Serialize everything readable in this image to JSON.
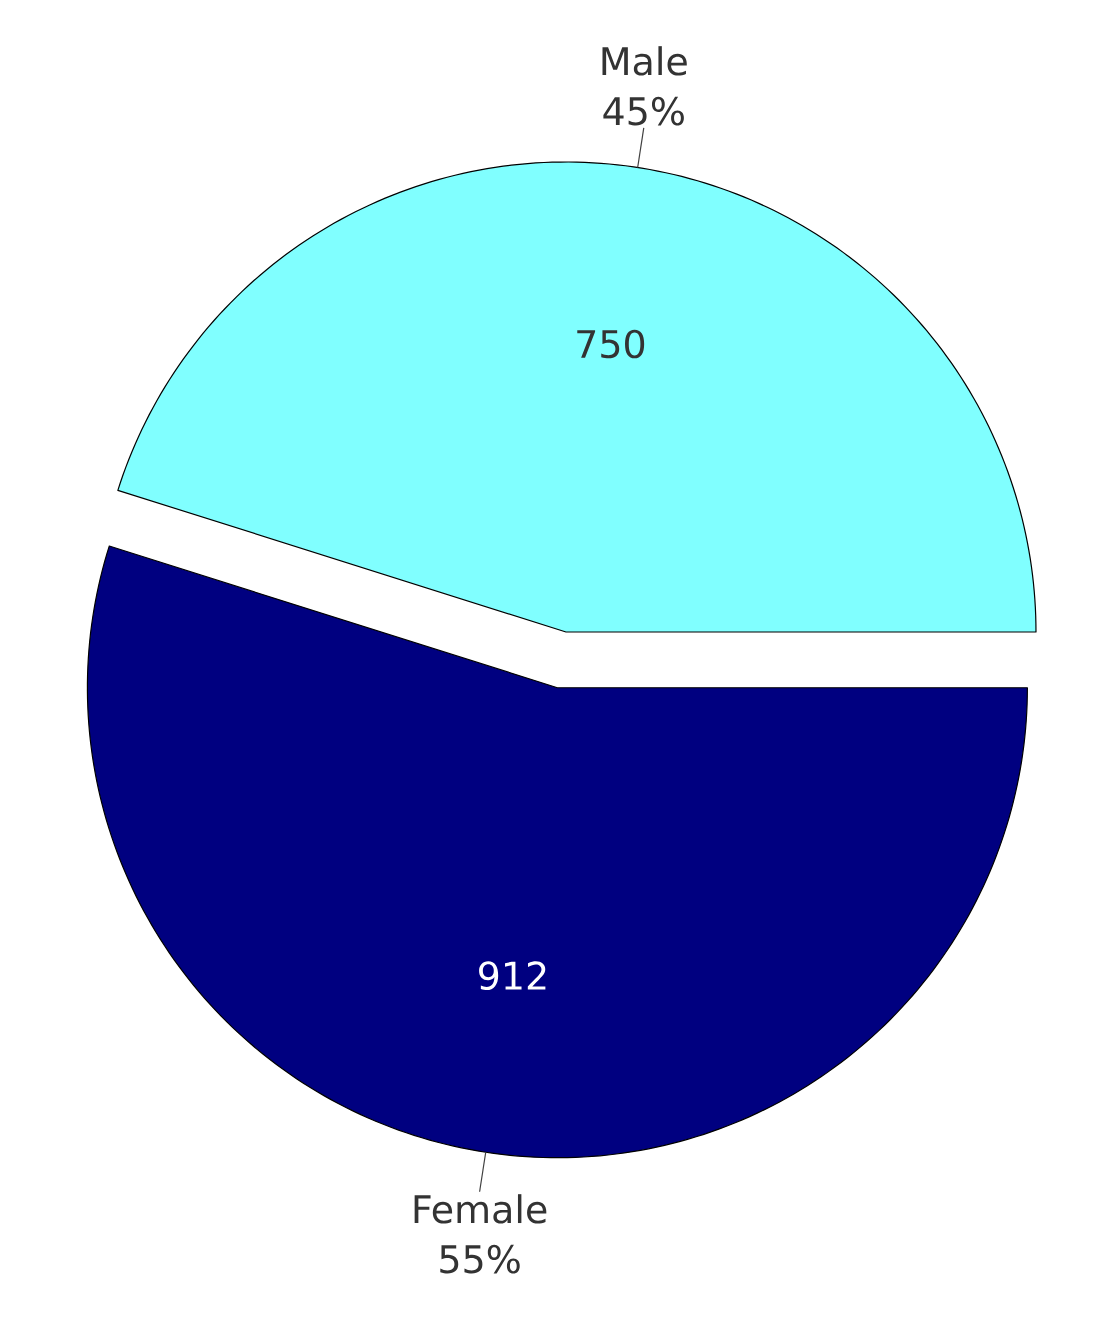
{
  "chart_data": {
    "type": "pie",
    "categories": [
      "Male",
      "Female"
    ],
    "values": [
      750,
      912
    ],
    "colors": [
      "#80ffff",
      "#000080"
    ],
    "data_labels": true,
    "annotations": [
      "45%",
      "55%"
    ]
  }
}
